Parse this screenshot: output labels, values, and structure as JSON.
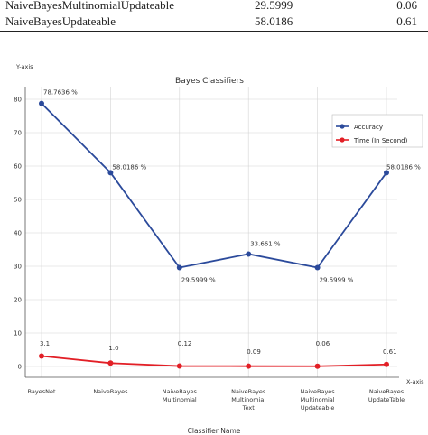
{
  "table": {
    "rows": [
      {
        "name": "NaiveBayesMultinomialUpdateable",
        "accuracy": "29.5999",
        "time": "0.06"
      },
      {
        "name": "NaiveBayesUpdateable",
        "accuracy": "58.0186",
        "time": "0.61"
      }
    ]
  },
  "chart_data": {
    "type": "line",
    "title": "Bayes Classifiers",
    "xlabel": "Classifier Name",
    "ylabel": "Y-axis",
    "x_axis_tag": "X-axis",
    "categories": [
      "BayesNet",
      "NaiveBayes",
      "NaiveBayes Multinomial",
      "NaiveBayes Multinomial Text",
      "NaiveBayes Multinomial Updateable",
      "NaiveBayes UpdateTable"
    ],
    "category_lines": [
      [
        "BayesNet"
      ],
      [
        "NaiveBayes"
      ],
      [
        "NaiveBayes",
        "Multinomial"
      ],
      [
        "NaiveBayes",
        "Multinomial",
        "Text"
      ],
      [
        "NaiveBayes",
        "Multinomial",
        "Updateable"
      ],
      [
        "NaiveBayes",
        "UpdateTable"
      ]
    ],
    "ylim": [
      0,
      80
    ],
    "yticks": [
      0,
      10,
      20,
      30,
      40,
      50,
      60,
      70,
      80
    ],
    "grid": true,
    "legend_position": "top-right",
    "series": [
      {
        "name": "Accuracy",
        "color": "#2b4a9b",
        "values": [
          78.7636,
          58.0186,
          29.5999,
          33.661,
          29.5999,
          58.0186
        ],
        "labels": [
          "78.7636 %",
          "58.0186 %",
          "29.5999 %",
          "33.661 %",
          "29.5999 %",
          "58.0186 %"
        ]
      },
      {
        "name": "Time (In Second)",
        "color": "#e21f26",
        "values": [
          3.1,
          1.0,
          0.12,
          0.09,
          0.06,
          0.61
        ],
        "labels": [
          "3.1",
          "1.0",
          "0.12",
          "0.09",
          "0.06",
          "0.61"
        ]
      }
    ]
  }
}
